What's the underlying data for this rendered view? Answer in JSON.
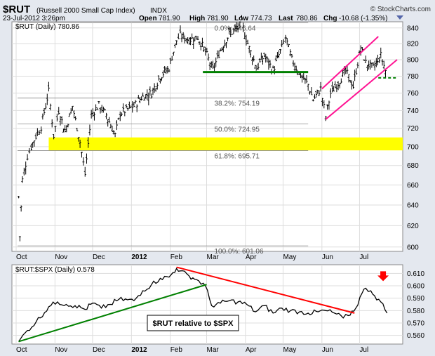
{
  "header": {
    "symbol": "$RUT",
    "name": "(Russell 2000 Small Cap Index)",
    "exchange": "INDX",
    "watermark": "© StockCharts.com",
    "date": "23-Jul-2012 3:26pm",
    "open_label": "Open",
    "open": "781.90",
    "high_label": "High",
    "high": "781.90",
    "low_label": "Low",
    "low": "774.73",
    "last_label": "Last",
    "last": "780.86",
    "chg_label": "Chg",
    "chg": "-10.68 (-1.35%)",
    "chg_arrow": "down-triangle-icon"
  },
  "colors": {
    "background": "#e4e8ef",
    "panel": "#ffffff",
    "price_bars": "#000000",
    "support_line": "#008000",
    "channel": "#ff1493",
    "fib_zone": "#ffff00",
    "down_arrow": "#ff0000",
    "trend_up": "#008000",
    "trend_down": "#ff0000"
  },
  "chart_data": [
    {
      "type": "ohlc",
      "legend": "$RUT (Daily) 780.86",
      "x_ticks": [
        "Oct",
        "Nov",
        "Dec",
        "2012",
        "Feb",
        "Mar",
        "Apr",
        "May",
        "Jun",
        "Jul"
      ],
      "ylim": [
        596,
        848
      ],
      "y_ticks": [
        600,
        620,
        640,
        660,
        680,
        700,
        720,
        740,
        760,
        780,
        800,
        820,
        840
      ],
      "scale": "log",
      "grid": true,
      "close_series": [
        {
          "date": "2011-10-03",
          "value": 648
        },
        {
          "date": "2011-10-04",
          "value": 610
        },
        {
          "date": "2011-10-06",
          "value": 665
        },
        {
          "date": "2011-10-10",
          "value": 690
        },
        {
          "date": "2011-10-13",
          "value": 700
        },
        {
          "date": "2011-10-18",
          "value": 715
        },
        {
          "date": "2011-10-21",
          "value": 722
        },
        {
          "date": "2011-10-27",
          "value": 762
        },
        {
          "date": "2011-10-31",
          "value": 712
        },
        {
          "date": "2011-11-04",
          "value": 740
        },
        {
          "date": "2011-11-09",
          "value": 716
        },
        {
          "date": "2011-11-15",
          "value": 745
        },
        {
          "date": "2011-11-21",
          "value": 705
        },
        {
          "date": "2011-11-25",
          "value": 671
        },
        {
          "date": "2011-11-30",
          "value": 735
        },
        {
          "date": "2011-12-06",
          "value": 746
        },
        {
          "date": "2011-12-12",
          "value": 735
        },
        {
          "date": "2011-12-19",
          "value": 712
        },
        {
          "date": "2011-12-23",
          "value": 737
        },
        {
          "date": "2012-01-03",
          "value": 745
        },
        {
          "date": "2012-01-09",
          "value": 755
        },
        {
          "date": "2012-01-17",
          "value": 760
        },
        {
          "date": "2012-01-24",
          "value": 780
        },
        {
          "date": "2012-01-31",
          "value": 790
        },
        {
          "date": "2012-02-06",
          "value": 824
        },
        {
          "date": "2012-02-09",
          "value": 830
        },
        {
          "date": "2012-02-16",
          "value": 825
        },
        {
          "date": "2012-02-23",
          "value": 828
        },
        {
          "date": "2012-02-29",
          "value": 810
        },
        {
          "date": "2012-03-06",
          "value": 787
        },
        {
          "date": "2012-03-12",
          "value": 812
        },
        {
          "date": "2012-03-19",
          "value": 832
        },
        {
          "date": "2012-03-26",
          "value": 840
        },
        {
          "date": "2012-03-29",
          "value": 846
        },
        {
          "date": "2012-04-04",
          "value": 814
        },
        {
          "date": "2012-04-10",
          "value": 790
        },
        {
          "date": "2012-04-16",
          "value": 805
        },
        {
          "date": "2012-04-23",
          "value": 787
        },
        {
          "date": "2012-04-30",
          "value": 815
        },
        {
          "date": "2012-05-03",
          "value": 828
        },
        {
          "date": "2012-05-08",
          "value": 800
        },
        {
          "date": "2012-05-15",
          "value": 781
        },
        {
          "date": "2012-05-21",
          "value": 770
        },
        {
          "date": "2012-05-25",
          "value": 752
        },
        {
          "date": "2012-05-31",
          "value": 765
        },
        {
          "date": "2012-06-04",
          "value": 733
        },
        {
          "date": "2012-06-08",
          "value": 760
        },
        {
          "date": "2012-06-14",
          "value": 772
        },
        {
          "date": "2012-06-20",
          "value": 786
        },
        {
          "date": "2012-06-26",
          "value": 768
        },
        {
          "date": "2012-07-02",
          "value": 815
        },
        {
          "date": "2012-07-06",
          "value": 796
        },
        {
          "date": "2012-07-12",
          "value": 790
        },
        {
          "date": "2012-07-18",
          "value": 805
        },
        {
          "date": "2012-07-23",
          "value": 781
        }
      ],
      "fib_levels": [
        {
          "label": "0.0%: 846.64",
          "value": 846.64
        },
        {
          "label": "38.2%: 754.19",
          "value": 754.19
        },
        {
          "label": "50.0%: 724.95",
          "value": 724.95
        },
        {
          "label": "61.8%: 695.71",
          "value": 695.71
        },
        {
          "label": "100.0%: 601.06",
          "value": 601.06
        }
      ],
      "support_line": {
        "value": 785,
        "from": "2012-02-27",
        "to": "2012-05-21"
      },
      "channel_upper": {
        "from": {
          "date": "2012-06-01",
          "value": 765
        },
        "to": {
          "date": "2012-07-16",
          "value": 829
        }
      },
      "channel_lower": {
        "from": {
          "date": "2012-06-04",
          "value": 730
        },
        "to": {
          "date": "2012-07-31",
          "value": 800
        }
      },
      "breakout_line": {
        "value": 778,
        "from": "2012-07-16",
        "to": "2012-07-31"
      },
      "fib_zone": [
        696,
        710
      ]
    },
    {
      "type": "line",
      "legend": "$RUT:$SPX (Daily) 0.578",
      "annotation": "$RUT relative to $SPX",
      "x_ticks": [
        "Oct",
        "Nov",
        "Dec",
        "2012",
        "Feb",
        "Mar",
        "Apr",
        "May",
        "Jun",
        "Jul"
      ],
      "ylim": [
        0.553,
        0.617
      ],
      "y_ticks": [
        "0.560",
        "0.570",
        "0.580",
        "0.590",
        "0.600",
        "0.610"
      ],
      "grid": true,
      "series": [
        {
          "date": "2011-10-03",
          "value": 0.555
        },
        {
          "date": "2011-10-10",
          "value": 0.564
        },
        {
          "date": "2011-10-17",
          "value": 0.571
        },
        {
          "date": "2011-10-27",
          "value": 0.583
        },
        {
          "date": "2011-11-03",
          "value": 0.587
        },
        {
          "date": "2011-11-10",
          "value": 0.585
        },
        {
          "date": "2011-11-17",
          "value": 0.584
        },
        {
          "date": "2011-11-25",
          "value": 0.581
        },
        {
          "date": "2011-12-01",
          "value": 0.586
        },
        {
          "date": "2011-12-08",
          "value": 0.582
        },
        {
          "date": "2011-12-15",
          "value": 0.585
        },
        {
          "date": "2011-12-22",
          "value": 0.589
        },
        {
          "date": "2012-01-03",
          "value": 0.588
        },
        {
          "date": "2012-01-10",
          "value": 0.596
        },
        {
          "date": "2012-01-17",
          "value": 0.601
        },
        {
          "date": "2012-01-24",
          "value": 0.606
        },
        {
          "date": "2012-01-31",
          "value": 0.607
        },
        {
          "date": "2012-02-06",
          "value": 0.614
        },
        {
          "date": "2012-02-09",
          "value": 0.612
        },
        {
          "date": "2012-02-16",
          "value": 0.608
        },
        {
          "date": "2012-02-22",
          "value": 0.605
        },
        {
          "date": "2012-02-29",
          "value": 0.6
        },
        {
          "date": "2012-03-05",
          "value": 0.584
        },
        {
          "date": "2012-03-12",
          "value": 0.586
        },
        {
          "date": "2012-03-19",
          "value": 0.588
        },
        {
          "date": "2012-03-26",
          "value": 0.587
        },
        {
          "date": "2012-04-02",
          "value": 0.585
        },
        {
          "date": "2012-04-09",
          "value": 0.579
        },
        {
          "date": "2012-04-16",
          "value": 0.584
        },
        {
          "date": "2012-04-23",
          "value": 0.578
        },
        {
          "date": "2012-04-30",
          "value": 0.582
        },
        {
          "date": "2012-05-07",
          "value": 0.58
        },
        {
          "date": "2012-05-14",
          "value": 0.579
        },
        {
          "date": "2012-05-21",
          "value": 0.578
        },
        {
          "date": "2012-05-29",
          "value": 0.579
        },
        {
          "date": "2012-06-04",
          "value": 0.58
        },
        {
          "date": "2012-06-11",
          "value": 0.578
        },
        {
          "date": "2012-06-18",
          "value": 0.574
        },
        {
          "date": "2012-06-22",
          "value": 0.576
        },
        {
          "date": "2012-06-28",
          "value": 0.582
        },
        {
          "date": "2012-07-03",
          "value": 0.594
        },
        {
          "date": "2012-07-06",
          "value": 0.598
        },
        {
          "date": "2012-07-10",
          "value": 0.596
        },
        {
          "date": "2012-07-13",
          "value": 0.592
        },
        {
          "date": "2012-07-18",
          "value": 0.587
        },
        {
          "date": "2012-07-23",
          "value": 0.578
        }
      ],
      "trend_up": {
        "from": {
          "date": "2011-10-03",
          "value": 0.555
        },
        "to": {
          "date": "2012-03-01",
          "value": 0.601
        }
      },
      "trend_down": {
        "from": {
          "date": "2012-02-06",
          "value": 0.615
        },
        "to": {
          "date": "2012-06-27",
          "value": 0.578
        }
      },
      "marker": {
        "type": "down-arrow-icon",
        "date": "2012-07-12",
        "value": 0.606
      }
    }
  ]
}
